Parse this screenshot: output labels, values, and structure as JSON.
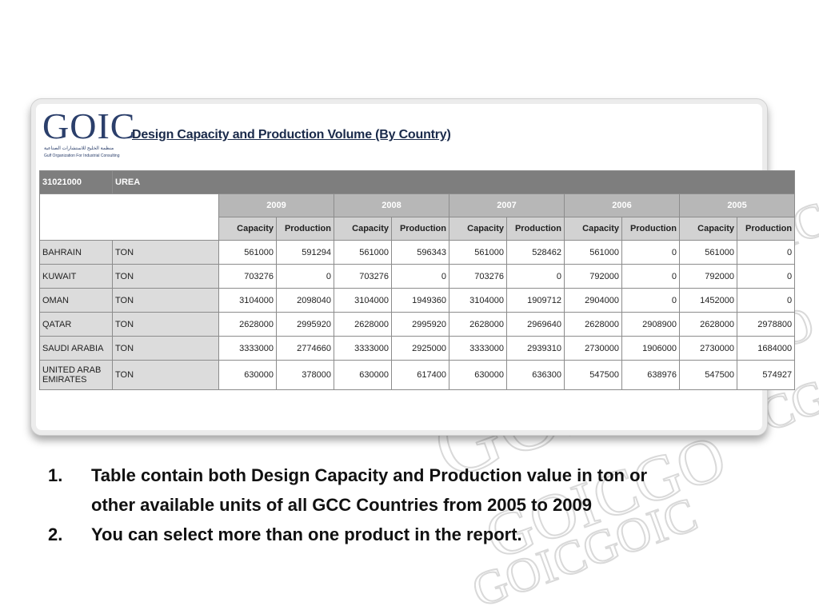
{
  "report": {
    "title": "Design Capacity and Production Volume (By Country)",
    "logo_text": "GOIC",
    "logo_sub_arabic": "منظمة الخليج للاستشارات الصناعية",
    "logo_sub_english": "Gulf Organization For Industrial Consulting"
  },
  "table": {
    "code": "31021000",
    "product": "UREA",
    "years": [
      "2009",
      "2008",
      "2007",
      "2006",
      "2005"
    ],
    "capacity_label": "Capacity",
    "production_label": "Production",
    "rows": [
      {
        "country": "BAHRAIN",
        "unit": "TON",
        "values": [
          "561000",
          "591294",
          "561000",
          "596343",
          "561000",
          "528462",
          "561000",
          "0",
          "561000",
          "0"
        ]
      },
      {
        "country": "KUWAIT",
        "unit": "TON",
        "values": [
          "703276",
          "0",
          "703276",
          "0",
          "703276",
          "0",
          "792000",
          "0",
          "792000",
          "0"
        ]
      },
      {
        "country": "OMAN",
        "unit": "TON",
        "values": [
          "3104000",
          "2098040",
          "3104000",
          "1949360",
          "3104000",
          "1909712",
          "2904000",
          "0",
          "1452000",
          "0"
        ]
      },
      {
        "country": "QATAR",
        "unit": "TON",
        "values": [
          "2628000",
          "2995920",
          "2628000",
          "2995920",
          "2628000",
          "2969640",
          "2628000",
          "2908900",
          "2628000",
          "2978800"
        ]
      },
      {
        "country": "SAUDI ARABIA",
        "unit": "TON",
        "values": [
          "3333000",
          "2774660",
          "3333000",
          "2925000",
          "3333000",
          "2939310",
          "2730000",
          "1906000",
          "2730000",
          "1684000"
        ]
      },
      {
        "country": "UNITED ARAB EMIRATES",
        "unit": "TON",
        "values": [
          "630000",
          "378000",
          "630000",
          "617400",
          "630000",
          "636300",
          "547500",
          "638976",
          "547500",
          "574927"
        ]
      }
    ]
  },
  "notes": [
    {
      "num": "1.",
      "text": "Table contain both Design Capacity and Production value in ton or other available units of all GCC Countries from 2005 to 2009"
    },
    {
      "num": "2.",
      "text": "You can select more than one product in the report."
    }
  ]
}
